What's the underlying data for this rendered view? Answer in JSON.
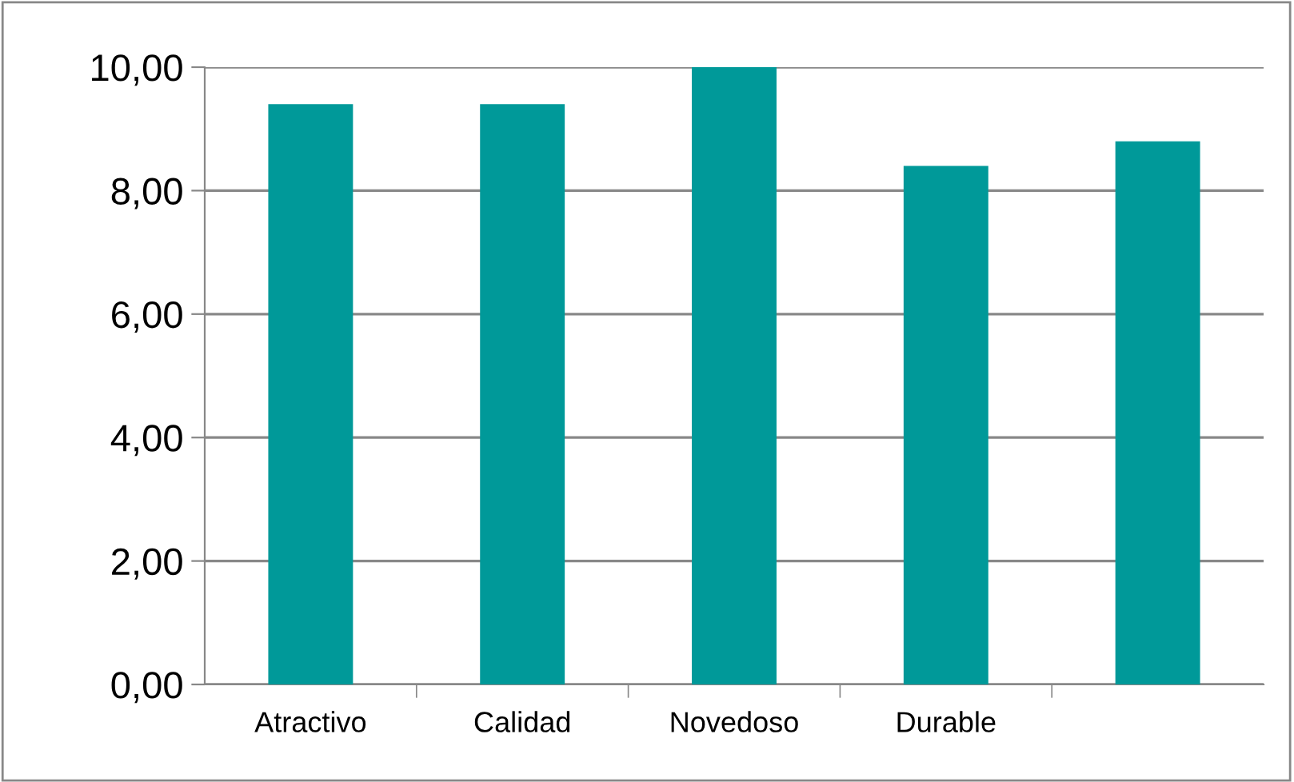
{
  "chart_data": {
    "type": "bar",
    "categories": [
      "Atractivo",
      "Calidad",
      "Novedoso",
      "Durable",
      null
    ],
    "values": [
      9.4,
      9.4,
      10,
      8.4,
      8.8
    ],
    "color": "#009999",
    "ylim": [
      0,
      10
    ],
    "yticks": [
      {
        "value": 0,
        "label": "0,00"
      },
      {
        "value": 2,
        "label": "2,00"
      },
      {
        "value": 4,
        "label": "4,00"
      },
      {
        "value": 6,
        "label": "6,00"
      },
      {
        "value": 8,
        "label": "8,00"
      },
      {
        "value": 10,
        "label": "10,00"
      }
    ],
    "grid": "y"
  }
}
